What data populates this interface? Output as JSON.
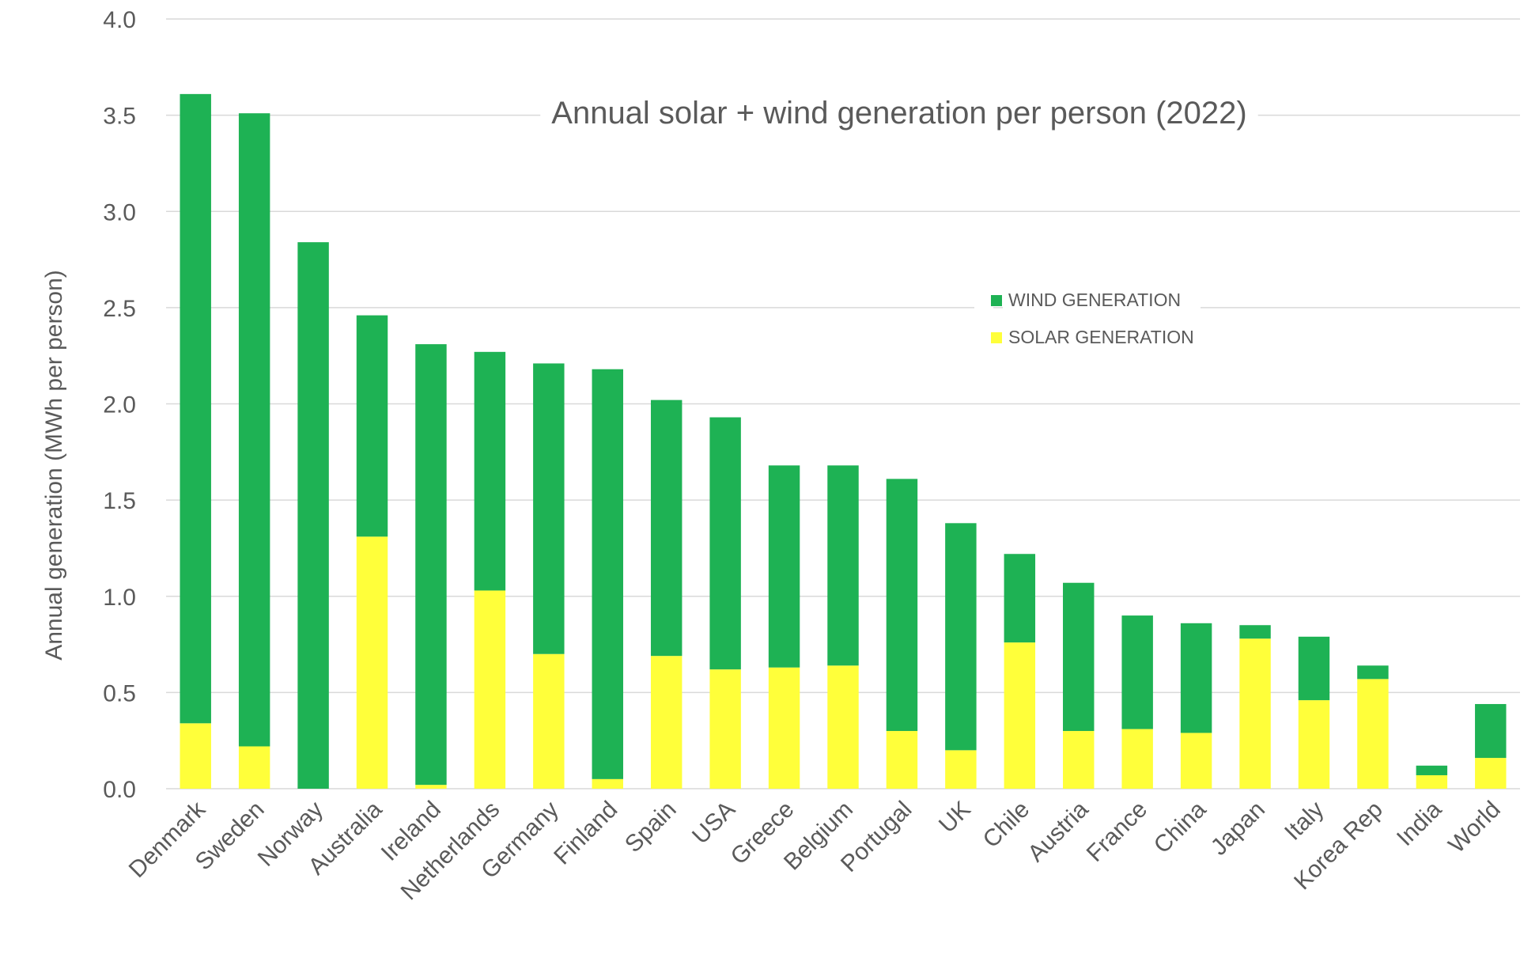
{
  "chart_data": {
    "type": "bar",
    "stacked": true,
    "title": "Annual solar + wind generation per person (2022)",
    "xlabel": "",
    "ylabel": "Annual generation (MWh per person)",
    "ylim": [
      0,
      4.0
    ],
    "yticks": [
      "0.0",
      "0.5",
      "1.0",
      "1.5",
      "2.0",
      "2.5",
      "3.0",
      "3.5",
      "4.0"
    ],
    "grid": true,
    "legend_position": "center-right",
    "categories": [
      "Denmark",
      "Sweden",
      "Norway",
      "Australia",
      "Ireland",
      "Netherlands",
      "Germany",
      "Finland",
      "Spain",
      "USA",
      "Greece",
      "Belgium",
      "Portugal",
      "UK",
      "Chile",
      "Austria",
      "France",
      "China",
      "Japan",
      "Italy",
      "Korea Rep",
      "India",
      "World"
    ],
    "series": [
      {
        "name": "SOLAR GENERATION",
        "color": "#ffff3a",
        "values": [
          0.34,
          0.22,
          0.0,
          1.31,
          0.02,
          1.03,
          0.7,
          0.05,
          0.69,
          0.62,
          0.63,
          0.64,
          0.3,
          0.2,
          0.76,
          0.3,
          0.31,
          0.29,
          0.78,
          0.46,
          0.57,
          0.07,
          0.16
        ]
      },
      {
        "name": "WIND GENERATION",
        "color": "#1eb254",
        "values": [
          3.27,
          3.29,
          2.84,
          1.15,
          2.29,
          1.24,
          1.51,
          2.13,
          1.33,
          1.31,
          1.05,
          1.04,
          1.31,
          1.18,
          0.46,
          0.77,
          0.59,
          0.57,
          0.07,
          0.33,
          0.07,
          0.05,
          0.28
        ]
      }
    ]
  }
}
